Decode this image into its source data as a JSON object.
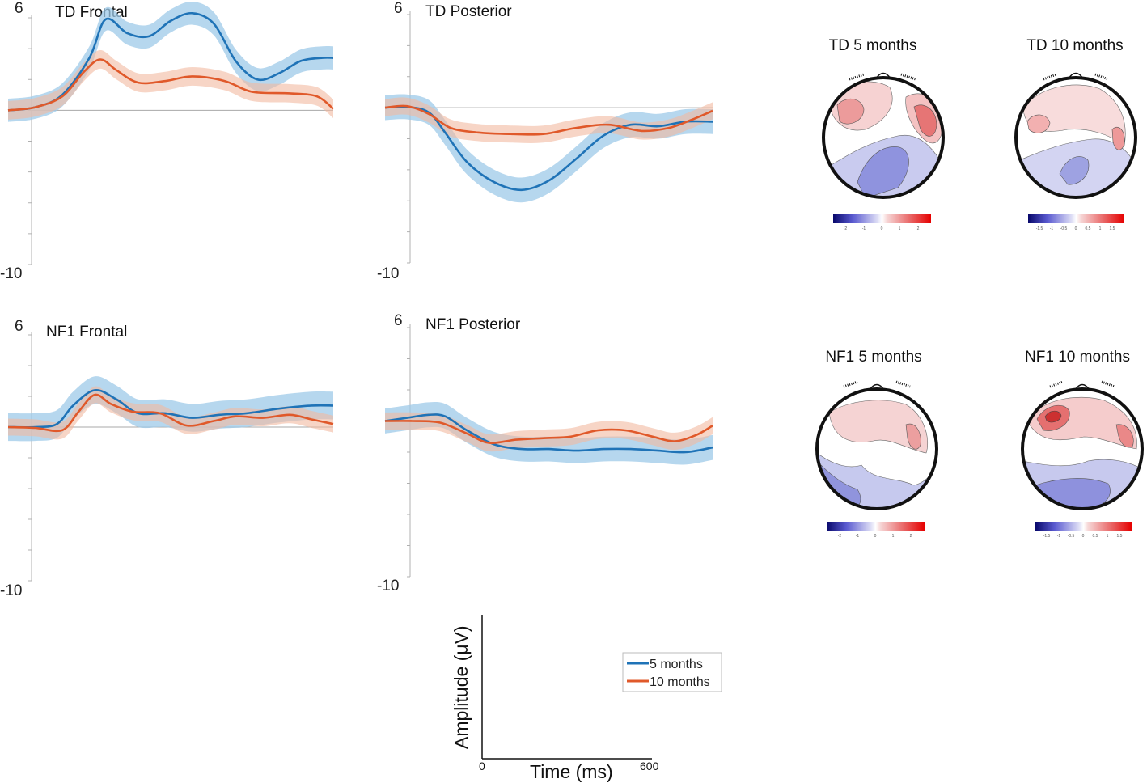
{
  "colors": {
    "series_5m": "#1f73b7",
    "band_5m": "#9ecae8",
    "series_10m": "#e0592a",
    "band_10m": "#f2b9a0"
  },
  "chart_data": [
    {
      "type": "line",
      "title": "TD Frontal",
      "xlim": [
        0,
        600
      ],
      "ylim": [
        -10,
        6
      ],
      "yticks": [
        "6",
        "-10"
      ],
      "series": [
        {
          "name": "5 months",
          "points": [
            [
              0,
              0
            ],
            [
              50,
              0.2
            ],
            [
              100,
              1.0
            ],
            [
              150,
              3.4
            ],
            [
              180,
              5.9
            ],
            [
              220,
              5.0
            ],
            [
              260,
              4.8
            ],
            [
              300,
              5.8
            ],
            [
              340,
              6.3
            ],
            [
              380,
              5.6
            ],
            [
              420,
              3.2
            ],
            [
              460,
              2.0
            ],
            [
              500,
              2.4
            ],
            [
              540,
              3.2
            ],
            [
              580,
              3.4
            ],
            [
              600,
              3.4
            ]
          ],
          "band": 0.75
        },
        {
          "name": "10 months",
          "points": [
            [
              0,
              0
            ],
            [
              50,
              0.2
            ],
            [
              100,
              0.9
            ],
            [
              140,
              2.5
            ],
            [
              170,
              3.3
            ],
            [
              200,
              2.6
            ],
            [
              240,
              1.8
            ],
            [
              290,
              1.9
            ],
            [
              340,
              2.2
            ],
            [
              400,
              1.9
            ],
            [
              450,
              1.2
            ],
            [
              520,
              1.1
            ],
            [
              570,
              0.9
            ],
            [
              600,
              0.1
            ]
          ],
          "band": 0.6
        }
      ]
    },
    {
      "type": "line",
      "title": "TD Posterior",
      "xlim": [
        0,
        600
      ],
      "ylim": [
        -10,
        6
      ],
      "yticks": [
        "6",
        "-10"
      ],
      "series": [
        {
          "name": "5 months",
          "points": [
            [
              0,
              0
            ],
            [
              40,
              0.05
            ],
            [
              80,
              -0.3
            ],
            [
              110,
              -1.6
            ],
            [
              150,
              -3.5
            ],
            [
              200,
              -4.8
            ],
            [
              250,
              -5.3
            ],
            [
              300,
              -4.7
            ],
            [
              350,
              -3.3
            ],
            [
              400,
              -1.8
            ],
            [
              450,
              -1.1
            ],
            [
              500,
              -1.2
            ],
            [
              550,
              -0.9
            ],
            [
              600,
              -0.9
            ]
          ],
          "band": 0.8
        },
        {
          "name": "10 months",
          "points": [
            [
              0,
              0
            ],
            [
              40,
              0.1
            ],
            [
              80,
              -0.4
            ],
            [
              120,
              -1.3
            ],
            [
              170,
              -1.6
            ],
            [
              230,
              -1.7
            ],
            [
              290,
              -1.7
            ],
            [
              350,
              -1.3
            ],
            [
              410,
              -1.1
            ],
            [
              470,
              -1.5
            ],
            [
              520,
              -1.3
            ],
            [
              560,
              -0.8
            ],
            [
              600,
              -0.2
            ]
          ],
          "band": 0.55
        }
      ]
    },
    {
      "type": "line",
      "title": "NF1 Frontal",
      "xlim": [
        0,
        600
      ],
      "ylim": [
        -10,
        6
      ],
      "yticks": [
        "6",
        "-10"
      ],
      "series": [
        {
          "name": "5 months",
          "points": [
            [
              0,
              0
            ],
            [
              50,
              0
            ],
            [
              90,
              0.2
            ],
            [
              120,
              1.4
            ],
            [
              160,
              2.4
            ],
            [
              200,
              1.8
            ],
            [
              240,
              0.9
            ],
            [
              290,
              0.9
            ],
            [
              340,
              0.6
            ],
            [
              390,
              0.8
            ],
            [
              440,
              0.9
            ],
            [
              500,
              1.2
            ],
            [
              560,
              1.4
            ],
            [
              600,
              1.4
            ]
          ],
          "band": 0.9
        },
        {
          "name": "10 months",
          "points": [
            [
              0,
              0
            ],
            [
              50,
              -0.05
            ],
            [
              100,
              -0.2
            ],
            [
              130,
              1.0
            ],
            [
              160,
              2.1
            ],
            [
              190,
              1.5
            ],
            [
              230,
              1.0
            ],
            [
              280,
              0.9
            ],
            [
              330,
              0.1
            ],
            [
              380,
              0.4
            ],
            [
              420,
              0.7
            ],
            [
              470,
              0.6
            ],
            [
              520,
              0.8
            ],
            [
              560,
              0.5
            ],
            [
              600,
              0.2
            ]
          ],
          "band": 0.55
        }
      ]
    },
    {
      "type": "line",
      "title": "NF1 Posterior",
      "xlim": [
        0,
        600
      ],
      "ylim": [
        -10,
        6
      ],
      "yticks": [
        "6",
        "-10"
      ],
      "series": [
        {
          "name": "5 months",
          "points": [
            [
              0,
              0
            ],
            [
              40,
              0.2
            ],
            [
              80,
              0.4
            ],
            [
              110,
              0.3
            ],
            [
              150,
              -0.6
            ],
            [
              200,
              -1.5
            ],
            [
              250,
              -1.8
            ],
            [
              300,
              -1.8
            ],
            [
              350,
              -1.9
            ],
            [
              400,
              -1.8
            ],
            [
              450,
              -1.8
            ],
            [
              500,
              -1.9
            ],
            [
              550,
              -2.0
            ],
            [
              600,
              -1.7
            ]
          ],
          "band": 0.8
        },
        {
          "name": "10 months",
          "points": [
            [
              0,
              0
            ],
            [
              50,
              0
            ],
            [
              100,
              -0.1
            ],
            [
              150,
              -0.8
            ],
            [
              190,
              -1.4
            ],
            [
              240,
              -1.2
            ],
            [
              290,
              -1.1
            ],
            [
              340,
              -1.0
            ],
            [
              390,
              -0.6
            ],
            [
              440,
              -0.6
            ],
            [
              490,
              -1.0
            ],
            [
              530,
              -1.3
            ],
            [
              570,
              -0.9
            ],
            [
              600,
              -0.3
            ]
          ],
          "band": 0.55
        }
      ]
    }
  ],
  "topomaps": [
    {
      "title": "TD 5 months",
      "cbar_ticks": [
        "-2",
        "-1",
        "0",
        "1",
        "2"
      ]
    },
    {
      "title": "TD 10 months",
      "cbar_ticks": [
        "-1.5",
        "-1",
        "-0.5",
        "0",
        "0.5",
        "1",
        "1.5"
      ]
    },
    {
      "title": "NF1 5 months",
      "cbar_ticks": [
        "-2",
        "-1",
        "0",
        "1",
        "2"
      ]
    },
    {
      "title": "NF1 10 months",
      "cbar_ticks": [
        "-1.5",
        "-1",
        "-0.5",
        "0",
        "0.5",
        "1",
        "1.5"
      ]
    }
  ],
  "axis_key": {
    "ylabel": "Amplitude (μV)",
    "xlabel": "Time (ms)",
    "x_start": "0",
    "x_end": "600"
  },
  "legend": {
    "items": [
      "5 months",
      "10 months"
    ]
  }
}
